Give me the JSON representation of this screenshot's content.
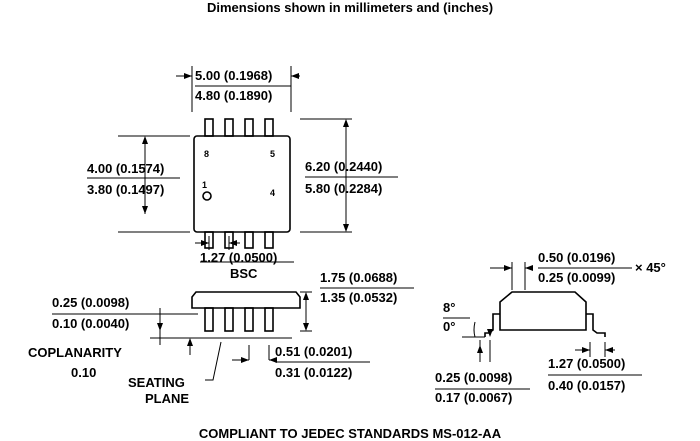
{
  "header": {
    "title": "Dimensions shown in millimeters and (inches)"
  },
  "top_view": {
    "length_max": "5.00 (0.1968)",
    "length_min": "4.80 (0.1890)",
    "width_max": "4.00 (0.1574)",
    "width_min": "3.80 (0.1497)",
    "span_max": "6.20 (0.2440)",
    "span_min": "5.80 (0.2284)",
    "pins": [
      "8",
      "5",
      "1",
      "4"
    ],
    "pitch": "1.27 (0.0500)",
    "pitch_note": "BSC"
  },
  "side_view": {
    "height_max": "1.75 (0.0688)",
    "height_min": "1.35 (0.0532)",
    "standoff_max": "0.25 (0.0098)",
    "standoff_min": "0.10 (0.0040)",
    "coplanarity_label": "COPLANARITY",
    "coplanarity_value": "0.10",
    "seating_1": "SEATING",
    "seating_2": "PLANE",
    "lead_width_max": "0.51 (0.0201)",
    "lead_width_min": "0.31 (0.0122)"
  },
  "end_view": {
    "chamfer_max": "0.50 (0.0196)",
    "chamfer_min": "0.25 (0.0099)",
    "chamfer_angle": "× 45°",
    "angle_max": "8°",
    "angle_min": "0°",
    "thickness_max": "0.25 (0.0098)",
    "thickness_min": "0.17 (0.0067)",
    "foot_max": "1.27 (0.0500)",
    "foot_min": "0.40 (0.0157)"
  },
  "footer": {
    "note": "COMPLIANT TO JEDEC STANDARDS MS-012-AA"
  }
}
